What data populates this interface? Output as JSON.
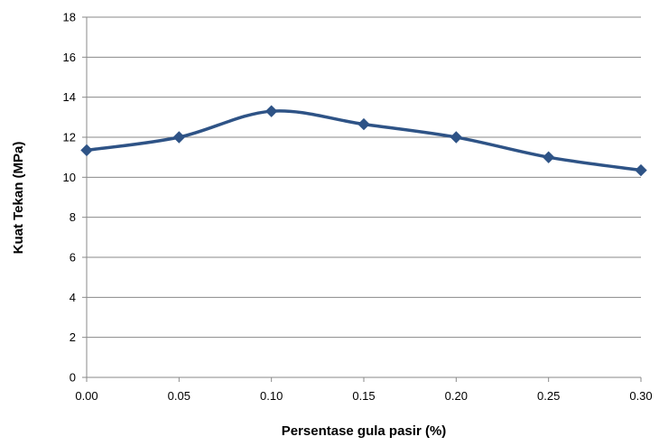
{
  "chart_data": {
    "type": "line",
    "title": "",
    "xlabel": "Persentase gula pasir (%)",
    "ylabel": "Kuat Tekan (MPa)",
    "x": [
      0.0,
      0.05,
      0.1,
      0.15,
      0.2,
      0.25,
      0.3
    ],
    "x_tick_labels": [
      "0.00",
      "0.05",
      "0.10",
      "0.15",
      "0.20",
      "0.25",
      "0.30"
    ],
    "xlim": [
      0,
      0.3
    ],
    "ylim": [
      0,
      18
    ],
    "y_ticks": [
      0,
      2,
      4,
      6,
      8,
      10,
      12,
      14,
      16,
      18
    ],
    "y_tick_labels": [
      "0",
      "2",
      "4",
      "6",
      "8",
      "10",
      "12",
      "14",
      "16",
      "18"
    ],
    "grid": true,
    "smooth": true,
    "marker": "diamond",
    "series": [
      {
        "values": [
          11.35,
          12.0,
          13.3,
          12.65,
          12.0,
          11.0,
          10.35
        ]
      }
    ],
    "colors": {
      "series": "#2e5386",
      "grid": "#8a8a8a",
      "axis": "#8a8a8a"
    }
  }
}
